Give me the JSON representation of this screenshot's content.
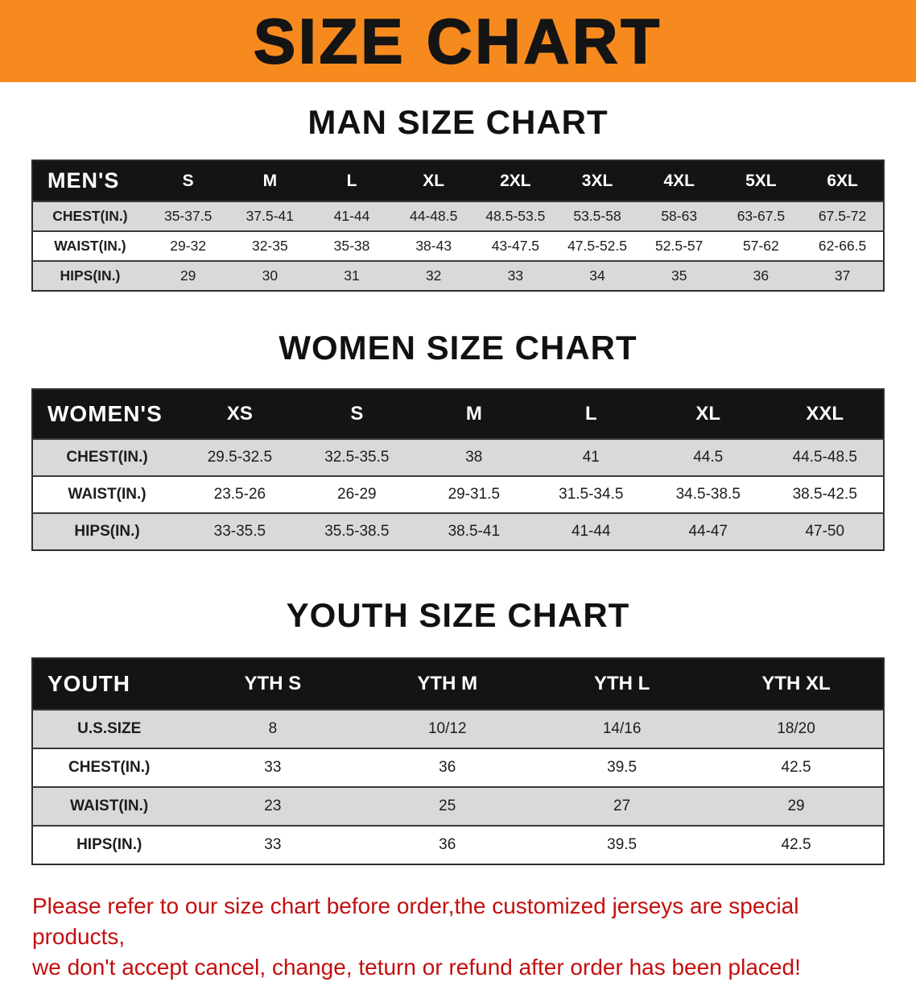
{
  "banner": {
    "title": "SIZE CHART"
  },
  "sections": [
    {
      "heading": "MAN SIZE CHART",
      "table": {
        "header_label": "MEN'S",
        "columns": [
          "S",
          "M",
          "L",
          "XL",
          "2XL",
          "3XL",
          "4XL",
          "5XL",
          "6XL"
        ],
        "rows": [
          {
            "label": "CHEST(IN.)",
            "values": [
              "35-37.5",
              "37.5-41",
              "41-44",
              "44-48.5",
              "48.5-53.5",
              "53.5-58",
              "58-63",
              "63-67.5",
              "67.5-72"
            ]
          },
          {
            "label": "WAIST(IN.)",
            "values": [
              "29-32",
              "32-35",
              "35-38",
              "38-43",
              "43-47.5",
              "47.5-52.5",
              "52.5-57",
              "57-62",
              "62-66.5"
            ]
          },
          {
            "label": "HIPS(IN.)",
            "values": [
              "29",
              "30",
              "31",
              "32",
              "33",
              "34",
              "35",
              "36",
              "37"
            ]
          }
        ]
      }
    },
    {
      "heading": "WOMEN SIZE CHART",
      "table": {
        "header_label": "WOMEN'S",
        "columns": [
          "XS",
          "S",
          "M",
          "L",
          "XL",
          "XXL"
        ],
        "rows": [
          {
            "label": "CHEST(IN.)",
            "values": [
              "29.5-32.5",
              "32.5-35.5",
              "38",
              "41",
              "44.5",
              "44.5-48.5"
            ]
          },
          {
            "label": "WAIST(IN.)",
            "values": [
              "23.5-26",
              "26-29",
              "29-31.5",
              "31.5-34.5",
              "34.5-38.5",
              "38.5-42.5"
            ]
          },
          {
            "label": "HIPS(IN.)",
            "values": [
              "33-35.5",
              "35.5-38.5",
              "38.5-41",
              "41-44",
              "44-47",
              "47-50"
            ]
          }
        ]
      }
    },
    {
      "heading": "YOUTH SIZE CHART",
      "table": {
        "header_label": "YOUTH",
        "columns": [
          "YTH S",
          "YTH M",
          "YTH L",
          "YTH XL"
        ],
        "rows": [
          {
            "label": "U.S.SIZE",
            "values": [
              "8",
              "10/12",
              "14/16",
              "18/20"
            ]
          },
          {
            "label": "CHEST(IN.)",
            "values": [
              "33",
              "36",
              "39.5",
              "42.5"
            ]
          },
          {
            "label": "WAIST(IN.)",
            "values": [
              "23",
              "25",
              "27",
              "29"
            ]
          },
          {
            "label": "HIPS(IN.)",
            "values": [
              "33",
              "36",
              "39.5",
              "42.5"
            ]
          }
        ]
      }
    }
  ],
  "footer": {
    "line1": "Please refer to our size chart before order,the customized jerseys are special products,",
    "line2": "we don't accept cancel, change, teturn or refund after order has been placed!"
  },
  "colors": {
    "banner_bg": "#f68a1e",
    "table_header_bg": "#141414",
    "stripe_row_bg": "#d9d9d9",
    "footer_text": "#c40e0e"
  }
}
